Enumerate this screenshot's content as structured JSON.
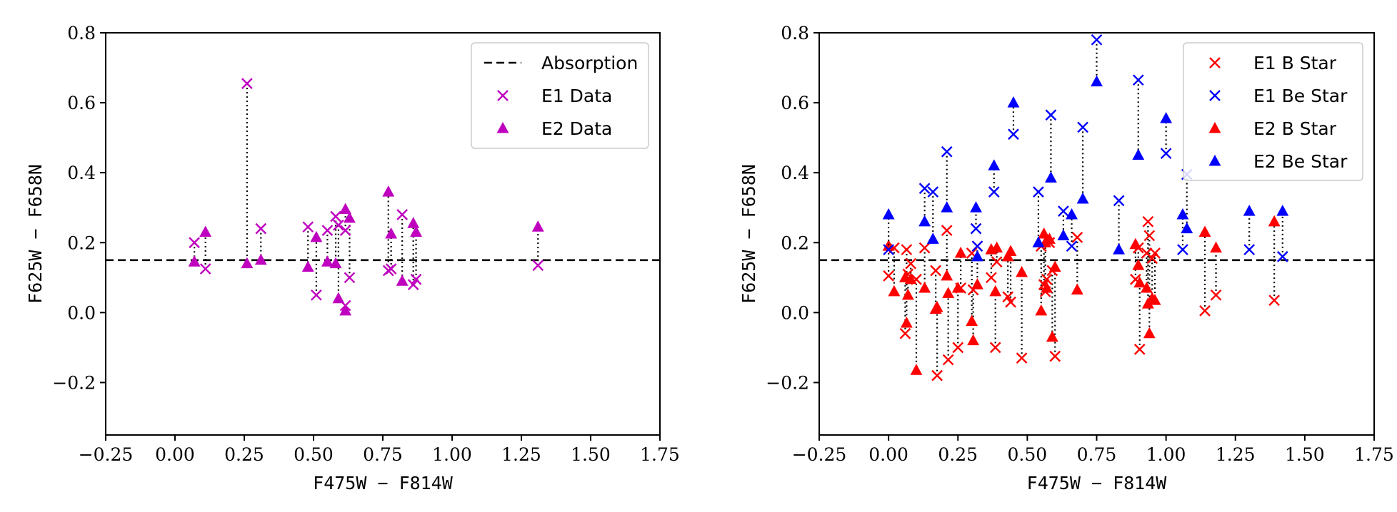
{
  "chart_data": [
    {
      "type": "scatter",
      "title": "",
      "xlabel": "F475W − F814W",
      "ylabel": "F625W − F658N",
      "xlim": [
        -0.25,
        1.75
      ],
      "ylim": [
        -0.35,
        0.8
      ],
      "xticks": [
        -0.25,
        0.0,
        0.25,
        0.5,
        0.75,
        1.0,
        1.25,
        1.5,
        1.75
      ],
      "xtick_labels": [
        "−0.25",
        "0.00",
        "0.25",
        "0.50",
        "0.75",
        "1.00",
        "1.25",
        "1.50",
        "1.75"
      ],
      "yticks": [
        -0.2,
        0.0,
        0.2,
        0.4,
        0.6,
        0.8
      ],
      "ytick_labels": [
        "−0.2",
        "0.0",
        "0.2",
        "0.4",
        "0.6",
        "0.8"
      ],
      "grid": false,
      "reference_line": {
        "name": "Absorption",
        "y": 0.15,
        "style": "dashed",
        "color": "#000000"
      },
      "legend_position": "top-right",
      "legend": [
        {
          "label": "Absorption",
          "kind": "dash",
          "color": "#000000"
        },
        {
          "label": "E1 Data",
          "kind": "x",
          "color": "#bf00bf"
        },
        {
          "label": "E2 Data",
          "kind": "triangle",
          "color": "#bf00bf"
        }
      ],
      "series": [
        {
          "name": "Data",
          "color": "#bf00bf",
          "pairs": [
            {
              "x": 0.07,
              "e1": 0.2,
              "e2": 0.145
            },
            {
              "x": 0.11,
              "e1": 0.125,
              "e2": 0.23
            },
            {
              "x": 0.26,
              "e1": 0.655,
              "e2": 0.14
            },
            {
              "x": 0.31,
              "e1": 0.24,
              "e2": 0.15
            },
            {
              "x": 0.48,
              "e1": 0.245,
              "e2": 0.13
            },
            {
              "x": 0.51,
              "e1": 0.05,
              "e2": 0.215
            },
            {
              "x": 0.55,
              "e1": 0.235,
              "e2": 0.145
            },
            {
              "x": 0.58,
              "e1": 0.275,
              "e2": 0.14
            },
            {
              "x": 0.59,
              "e1": 0.25,
              "e2": 0.04
            },
            {
              "x": 0.615,
              "e1": 0.235,
              "e2": 0.295
            },
            {
              "x": 0.615,
              "e1": 0.02,
              "e2": 0.005
            },
            {
              "x": 0.63,
              "e1": 0.1,
              "e2": 0.27
            },
            {
              "x": 0.77,
              "e1": 0.12,
              "e2": 0.345
            },
            {
              "x": 0.78,
              "e1": 0.125,
              "e2": 0.225
            },
            {
              "x": 0.82,
              "e1": 0.28,
              "e2": 0.09
            },
            {
              "x": 0.86,
              "e1": 0.08,
              "e2": 0.255
            },
            {
              "x": 0.87,
              "e1": 0.095,
              "e2": 0.23
            },
            {
              "x": 1.31,
              "e1": 0.135,
              "e2": 0.245
            }
          ]
        }
      ]
    },
    {
      "type": "scatter",
      "title": "",
      "xlabel": "F475W − F814W",
      "ylabel": "F625W − F658N",
      "xlim": [
        -0.25,
        1.75
      ],
      "ylim": [
        -0.35,
        0.8
      ],
      "xticks": [
        -0.25,
        0.0,
        0.25,
        0.5,
        0.75,
        1.0,
        1.25,
        1.5,
        1.75
      ],
      "xtick_labels": [
        "−0.25",
        "0.00",
        "0.25",
        "0.50",
        "0.75",
        "1.00",
        "1.25",
        "1.50",
        "1.75"
      ],
      "yticks": [
        -0.2,
        0.0,
        0.2,
        0.4,
        0.6,
        0.8
      ],
      "ytick_labels": [
        "−0.2",
        "0.0",
        "0.2",
        "0.4",
        "0.6",
        "0.8"
      ],
      "grid": false,
      "reference_line": {
        "name": "Absorption",
        "y": 0.15,
        "style": "dashed",
        "color": "#000000"
      },
      "legend_position": "top-right",
      "legend": [
        {
          "label": "E1 B Star",
          "kind": "x",
          "color": "#ff0000"
        },
        {
          "label": "E1 Be Star",
          "kind": "x",
          "color": "#0000ff"
        },
        {
          "label": "E2 B Star",
          "kind": "triangle",
          "color": "#ff0000"
        },
        {
          "label": "E2 Be Star",
          "kind": "triangle",
          "color": "#0000ff"
        }
      ],
      "series": [
        {
          "name": "B Star",
          "color": "#ff0000",
          "pairs": [
            {
              "x": 0.0,
              "e1": 0.105,
              "e2": 0.19
            },
            {
              "x": 0.02,
              "e1": 0.185,
              "e2": 0.06
            },
            {
              "x": 0.06,
              "e1": -0.06,
              "e2": 0.1
            },
            {
              "x": 0.065,
              "e1": 0.18,
              "e2": -0.03
            },
            {
              "x": 0.07,
              "e1": 0.11,
              "e2": 0.05
            },
            {
              "x": 0.08,
              "e1": 0.14,
              "e2": 0.095
            },
            {
              "x": 0.1,
              "e1": 0.095,
              "e2": -0.165
            },
            {
              "x": 0.13,
              "e1": 0.185,
              "e2": 0.07
            },
            {
              "x": 0.17,
              "e1": 0.12,
              "e2": 0.01
            },
            {
              "x": 0.175,
              "e1": -0.18,
              "e2": 0.015
            },
            {
              "x": 0.21,
              "e1": 0.235,
              "e2": 0.105
            },
            {
              "x": 0.215,
              "e1": -0.135,
              "e2": 0.055
            },
            {
              "x": 0.25,
              "e1": -0.1,
              "e2": 0.07
            },
            {
              "x": 0.26,
              "e1": 0.07,
              "e2": 0.17
            },
            {
              "x": 0.3,
              "e1": 0.17,
              "e2": -0.025
            },
            {
              "x": 0.305,
              "e1": 0.065,
              "e2": -0.08
            },
            {
              "x": 0.32,
              "e1": 0.19,
              "e2": 0.08
            },
            {
              "x": 0.37,
              "e1": 0.1,
              "e2": 0.18
            },
            {
              "x": 0.385,
              "e1": -0.1,
              "e2": 0.06
            },
            {
              "x": 0.39,
              "e1": 0.145,
              "e2": 0.185
            },
            {
              "x": 0.43,
              "e1": 0.045,
              "e2": 0.16
            },
            {
              "x": 0.44,
              "e1": 0.03,
              "e2": 0.175
            },
            {
              "x": 0.48,
              "e1": -0.13,
              "e2": 0.115
            },
            {
              "x": 0.55,
              "e1": 0.19,
              "e2": 0.005
            },
            {
              "x": 0.56,
              "e1": 0.08,
              "e2": 0.225
            },
            {
              "x": 0.565,
              "e1": 0.06,
              "e2": 0.2
            },
            {
              "x": 0.57,
              "e1": 0.095,
              "e2": 0.07
            },
            {
              "x": 0.58,
              "e1": 0.2,
              "e2": 0.21
            },
            {
              "x": 0.59,
              "e1": 0.12,
              "e2": -0.07
            },
            {
              "x": 0.6,
              "e1": -0.125,
              "e2": 0.13
            },
            {
              "x": 0.68,
              "e1": 0.215,
              "e2": 0.065
            },
            {
              "x": 0.89,
              "e1": 0.095,
              "e2": 0.195
            },
            {
              "x": 0.9,
              "e1": 0.185,
              "e2": 0.135
            },
            {
              "x": 0.905,
              "e1": -0.105,
              "e2": 0.085
            },
            {
              "x": 0.93,
              "e1": 0.17,
              "e2": 0.07
            },
            {
              "x": 0.935,
              "e1": 0.26,
              "e2": 0.025
            },
            {
              "x": 0.94,
              "e1": 0.22,
              "e2": -0.06
            },
            {
              "x": 0.95,
              "e1": 0.155,
              "e2": 0.04
            },
            {
              "x": 0.96,
              "e1": 0.17,
              "e2": 0.035
            },
            {
              "x": 1.14,
              "e1": 0.005,
              "e2": 0.23
            },
            {
              "x": 1.18,
              "e1": 0.05,
              "e2": 0.185
            },
            {
              "x": 1.39,
              "e1": 0.035,
              "e2": 0.26
            }
          ]
        },
        {
          "name": "Be Star",
          "color": "#0000ff",
          "pairs": [
            {
              "x": 0.0,
              "e1": 0.18,
              "e2": 0.28
            },
            {
              "x": 0.13,
              "e1": 0.355,
              "e2": 0.26
            },
            {
              "x": 0.16,
              "e1": 0.345,
              "e2": 0.21
            },
            {
              "x": 0.21,
              "e1": 0.46,
              "e2": 0.3
            },
            {
              "x": 0.315,
              "e1": 0.24,
              "e2": 0.3
            },
            {
              "x": 0.32,
              "e1": 0.19,
              "e2": 0.16
            },
            {
              "x": 0.38,
              "e1": 0.345,
              "e2": 0.42
            },
            {
              "x": 0.45,
              "e1": 0.51,
              "e2": 0.6
            },
            {
              "x": 0.54,
              "e1": 0.345,
              "e2": 0.2
            },
            {
              "x": 0.585,
              "e1": 0.565,
              "e2": 0.385
            },
            {
              "x": 0.63,
              "e1": 0.29,
              "e2": 0.22
            },
            {
              "x": 0.66,
              "e1": 0.19,
              "e2": 0.28
            },
            {
              "x": 0.7,
              "e1": 0.53,
              "e2": 0.325
            },
            {
              "x": 0.75,
              "e1": 0.78,
              "e2": 0.66
            },
            {
              "x": 0.83,
              "e1": 0.32,
              "e2": 0.18
            },
            {
              "x": 0.9,
              "e1": 0.665,
              "e2": 0.45
            },
            {
              "x": 1.0,
              "e1": 0.455,
              "e2": 0.555
            },
            {
              "x": 1.06,
              "e1": 0.18,
              "e2": 0.28
            },
            {
              "x": 1.075,
              "e1": 0.395,
              "e2": 0.24
            },
            {
              "x": 1.3,
              "e1": 0.18,
              "e2": 0.29
            },
            {
              "x": 1.42,
              "e1": 0.16,
              "e2": 0.29
            }
          ]
        }
      ]
    }
  ]
}
